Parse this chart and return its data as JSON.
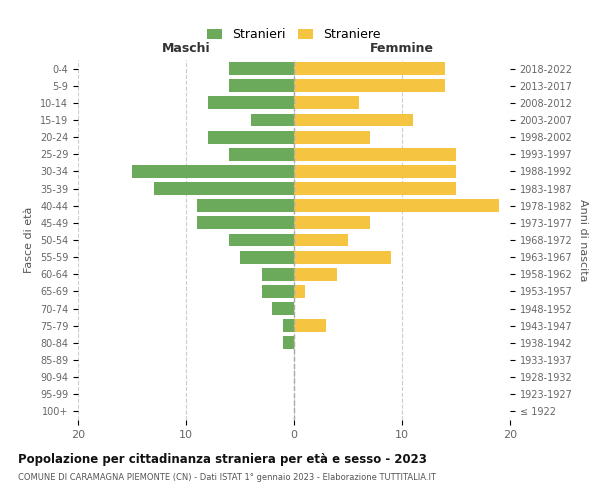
{
  "age_groups": [
    "100+",
    "95-99",
    "90-94",
    "85-89",
    "80-84",
    "75-79",
    "70-74",
    "65-69",
    "60-64",
    "55-59",
    "50-54",
    "45-49",
    "40-44",
    "35-39",
    "30-34",
    "25-29",
    "20-24",
    "15-19",
    "10-14",
    "5-9",
    "0-4"
  ],
  "birth_years": [
    "≤ 1922",
    "1923-1927",
    "1928-1932",
    "1933-1937",
    "1938-1942",
    "1943-1947",
    "1948-1952",
    "1953-1957",
    "1958-1962",
    "1963-1967",
    "1968-1972",
    "1973-1977",
    "1978-1982",
    "1983-1987",
    "1988-1992",
    "1993-1997",
    "1998-2002",
    "2003-2007",
    "2008-2012",
    "2013-2017",
    "2018-2022"
  ],
  "maschi": [
    0,
    0,
    0,
    0,
    1,
    1,
    2,
    3,
    3,
    5,
    6,
    9,
    9,
    13,
    15,
    6,
    8,
    4,
    8,
    6,
    6
  ],
  "femmine": [
    0,
    0,
    0,
    0,
    0,
    3,
    0,
    1,
    4,
    9,
    5,
    7,
    19,
    15,
    15,
    15,
    7,
    11,
    6,
    14,
    14
  ],
  "maschi_color": "#6aaa5a",
  "femmine_color": "#f5c542",
  "background_color": "#ffffff",
  "grid_color": "#cccccc",
  "title": "Popolazione per cittadinanza straniera per età e sesso - 2023",
  "subtitle": "COMUNE DI CARAMAGNA PIEMONTE (CN) - Dati ISTAT 1° gennaio 2023 - Elaborazione TUTTITALIA.IT",
  "xlabel_left": "Maschi",
  "xlabel_right": "Femmine",
  "ylabel_left": "Fasce di età",
  "ylabel_right": "Anni di nascita",
  "legend_stranieri": "Stranieri",
  "legend_straniere": "Straniere",
  "xlim": 20,
  "figsize": [
    6.0,
    5.0
  ],
  "dpi": 100
}
